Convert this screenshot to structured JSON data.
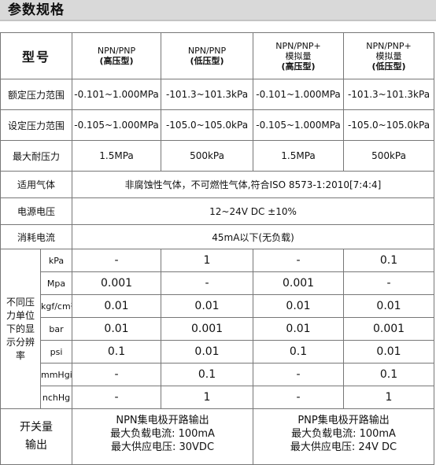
{
  "section_title": "参数规格",
  "header": {
    "label": "型号",
    "models": [
      {
        "line1": "NPN/PNP",
        "line2": "",
        "line3": "(高压型)"
      },
      {
        "line1": "NPN/PNP",
        "line2": "",
        "line3": "(低压型)"
      },
      {
        "line1": "NPN/PNP+",
        "line2": "模拟量",
        "line3": "(高压型)"
      },
      {
        "line1": "NPN/PNP+",
        "line2": "模拟量",
        "line3": "(低压型)"
      }
    ]
  },
  "rows": {
    "rated_range": {
      "label": "额定压力范围",
      "values": [
        "-0.101~1.000MPa",
        "-101.3~101.3kPa",
        "-0.101~1.000MPa",
        "-101.3~101.3kPa"
      ]
    },
    "set_range": {
      "label": "设定压力范围",
      "values": [
        "-0.105~1.000MPa",
        "-105.0~105.0kPa",
        "-0.105~1.000MPa",
        "-105.0~105.0kPa"
      ]
    },
    "max_pressure": {
      "label": "最大耐压力",
      "values": [
        "1.5MPa",
        "500kPa",
        "1.5MPa",
        "500kPa"
      ]
    },
    "media": {
      "label": "适用气体",
      "value": "非腐蚀性气体，不可燃性气体,符合ISO 8573-1:2010[7:4:4]"
    },
    "power": {
      "label": "电源电压",
      "value": "12~24V DC ±10%"
    },
    "current": {
      "label": "消耗电流",
      "value": "45mA以下(无负载)"
    }
  },
  "resolution": {
    "label": "不同压力单位下的显示分辨率",
    "units": [
      {
        "unit": "kPa",
        "values": [
          "-",
          "1",
          "-",
          "0.1"
        ]
      },
      {
        "unit": "Mpa",
        "values": [
          "0.001",
          "-",
          "0.001",
          "-"
        ]
      },
      {
        "unit": "kgf/cm²",
        "values": [
          "0.01",
          "0.01",
          "0.01",
          "0.01"
        ]
      },
      {
        "unit": "bar",
        "values": [
          "0.01",
          "0.001",
          "0.01",
          "0.001"
        ]
      },
      {
        "unit": "psi",
        "values": [
          "0.1",
          "0.01",
          "0.1",
          "0.01"
        ]
      },
      {
        "unit": "mmHgi",
        "values": [
          "-",
          "0.1",
          "-",
          "0.1"
        ]
      },
      {
        "unit": "nchHg",
        "values": [
          "-",
          "1",
          "-",
          "1"
        ]
      }
    ]
  },
  "switch_output": {
    "label_line1": "开关量",
    "label_line2": "输出",
    "npn": [
      "NPN集电极开路输出",
      "最大负载电流: 100mA",
      "最大供应电压: 30VDC"
    ],
    "pnp": [
      "PNP集电极开路输出",
      "最大负载电流: 100mA",
      "最大供应电压: 24V DC"
    ]
  }
}
